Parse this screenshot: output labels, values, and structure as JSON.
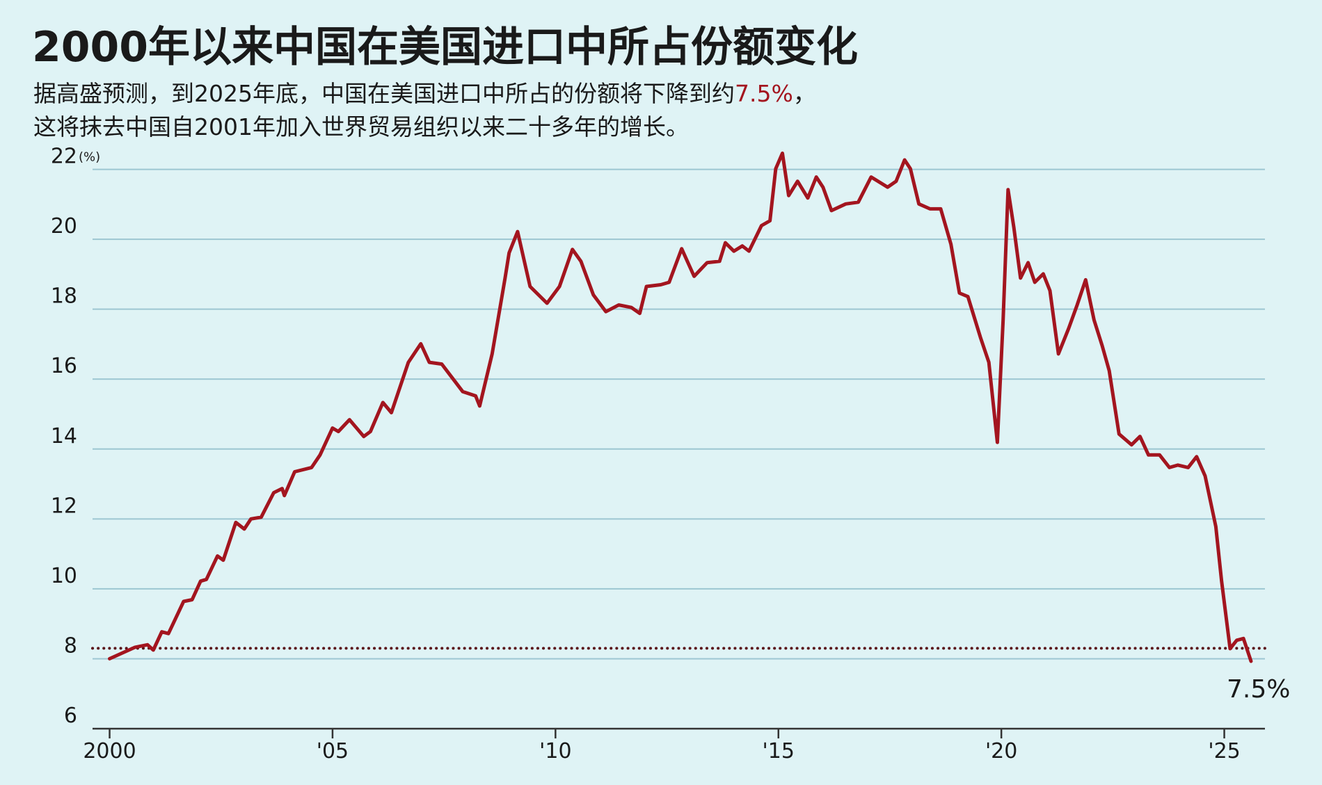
{
  "chart_data": {
    "type": "line",
    "title": "2000年以来中国在美国进口中所占份额变化",
    "subtitle": {
      "line1": "据高盛预测，到2025年底，中国在美国进口中所占的份额将下降到约",
      "highlight": "7.5%",
      "line1_end": "，",
      "line2": "这将抹去中国自2001年加入世界贸易组织以来二十多年的增长。"
    },
    "y_unit": "(%)",
    "annotation": "7.5%",
    "color": "#a3151f",
    "reference_line": 8.3,
    "xlim": [
      1999.6,
      2026.8
    ],
    "xticks": [
      2000,
      {
        "value": 2005,
        "label": "'05"
      },
      {
        "value": 2010,
        "label": "'10"
      },
      {
        "value": 2015,
        "label": "'15"
      },
      {
        "value": 2020,
        "label": "'20"
      },
      {
        "value": 2025,
        "label": "'25"
      }
    ],
    "ylim": [
      6,
      22.6
    ],
    "yticks": [
      6,
      8,
      10,
      12,
      14,
      16,
      18,
      20,
      22
    ],
    "grid": true,
    "x": [
      2000.0,
      2000.57,
      2000.85,
      2000.98,
      2001.17,
      2001.32,
      2001.66,
      2001.85,
      2002.04,
      2002.17,
      2002.42,
      2002.55,
      2002.83,
      2003.02,
      2003.17,
      2003.4,
      2003.68,
      2003.87,
      2003.92,
      2004.15,
      2004.53,
      2004.72,
      2005.0,
      2005.13,
      2005.38,
      2005.7,
      2005.85,
      2006.13,
      2006.32,
      2006.7,
      2006.98,
      2007.17,
      2007.45,
      2007.92,
      2008.21,
      2008.3,
      2008.58,
      2008.87,
      2008.96,
      2009.15,
      2009.43,
      2009.81,
      2010.09,
      2010.38,
      2010.57,
      2010.85,
      2011.13,
      2011.42,
      2011.7,
      2011.89,
      2012.04,
      2012.36,
      2012.55,
      2012.83,
      2013.11,
      2013.4,
      2013.68,
      2013.81,
      2014.0,
      2014.19,
      2014.34,
      2014.62,
      2014.81,
      2014.94,
      2015.09,
      2015.23,
      2015.43,
      2015.66,
      2015.85,
      2016.0,
      2016.19,
      2016.51,
      2016.79,
      2017.08,
      2017.45,
      2017.64,
      2017.83,
      2017.96,
      2018.15,
      2018.4,
      2018.64,
      2018.87,
      2019.06,
      2019.25,
      2019.53,
      2019.72,
      2019.91,
      2020.04,
      2020.15,
      2020.28,
      2020.43,
      2020.6,
      2020.75,
      2020.94,
      2021.09,
      2021.28,
      2021.51,
      2021.7,
      2021.89,
      2022.08,
      2022.26,
      2022.42,
      2022.64,
      2022.92,
      2023.11,
      2023.3,
      2023.55,
      2023.77,
      2023.96,
      2024.19,
      2024.38,
      2024.57,
      2024.81,
      2024.94,
      2025.13,
      2025.28,
      2025.43,
      2025.6
    ],
    "values": [
      8.0,
      8.33,
      8.4,
      8.25,
      8.77,
      8.72,
      9.64,
      9.69,
      10.22,
      10.27,
      10.94,
      10.82,
      11.9,
      11.71,
      12.0,
      12.05,
      12.75,
      12.87,
      12.67,
      13.35,
      13.47,
      13.83,
      14.6,
      14.5,
      14.84,
      14.36,
      14.5,
      15.33,
      15.04,
      16.48,
      17.01,
      16.48,
      16.43,
      15.64,
      15.52,
      15.23,
      16.72,
      18.89,
      19.61,
      20.22,
      18.65,
      18.17,
      18.65,
      19.71,
      19.37,
      18.41,
      17.93,
      18.12,
      18.05,
      17.88,
      18.65,
      18.7,
      18.77,
      19.73,
      18.94,
      19.33,
      19.37,
      19.9,
      19.66,
      19.81,
      19.66,
      20.39,
      20.53,
      22.02,
      22.46,
      21.25,
      21.66,
      21.18,
      21.78,
      21.49,
      20.82,
      21.01,
      21.06,
      21.78,
      21.49,
      21.66,
      22.27,
      22.02,
      21.01,
      20.87,
      20.87,
      19.86,
      18.46,
      18.36,
      17.2,
      16.48,
      14.19,
      17.69,
      21.42,
      20.34,
      18.89,
      19.33,
      18.77,
      19.01,
      18.53,
      16.72,
      17.45,
      18.12,
      18.84,
      17.69,
      16.96,
      16.24,
      14.43,
      14.12,
      14.36,
      13.83,
      13.83,
      13.47,
      13.54,
      13.47,
      13.78,
      13.23,
      11.78,
      10.22,
      8.29,
      8.53,
      8.58,
      7.93
    ]
  }
}
